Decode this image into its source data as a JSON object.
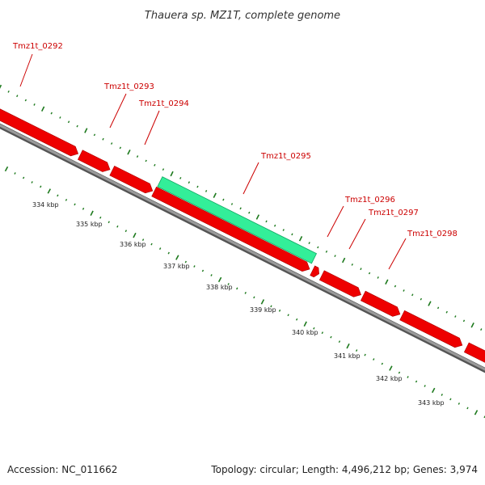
{
  "title": "Thauera sp. MZ1T, complete genome",
  "footer": {
    "accession": "Accession: NC_011662",
    "summary": "Topology: circular; Length: 4,496,212 bp; Genes: 3,974"
  },
  "colors": {
    "gene": "#ee0000",
    "gene_highlight": "#33ee99",
    "backbone": "#888888",
    "ticks": "#1e7a1e",
    "label": "#cc0000"
  },
  "gene_labels": [
    "Tmz1t_0292",
    "Tmz1t_0293",
    "Tmz1t_0294",
    "Tmz1t_0295",
    "Tmz1t_0296",
    "Tmz1t_0297",
    "Tmz1t_0298"
  ],
  "highlighted_gene": "Tmz1t_0295",
  "kbp_labels": [
    "334 kbp",
    "335 kbp",
    "336 kbp",
    "337 kbp",
    "338 kbp",
    "339 kbp",
    "340 kbp",
    "341 kbp",
    "342 kbp",
    "343 kbp"
  ]
}
